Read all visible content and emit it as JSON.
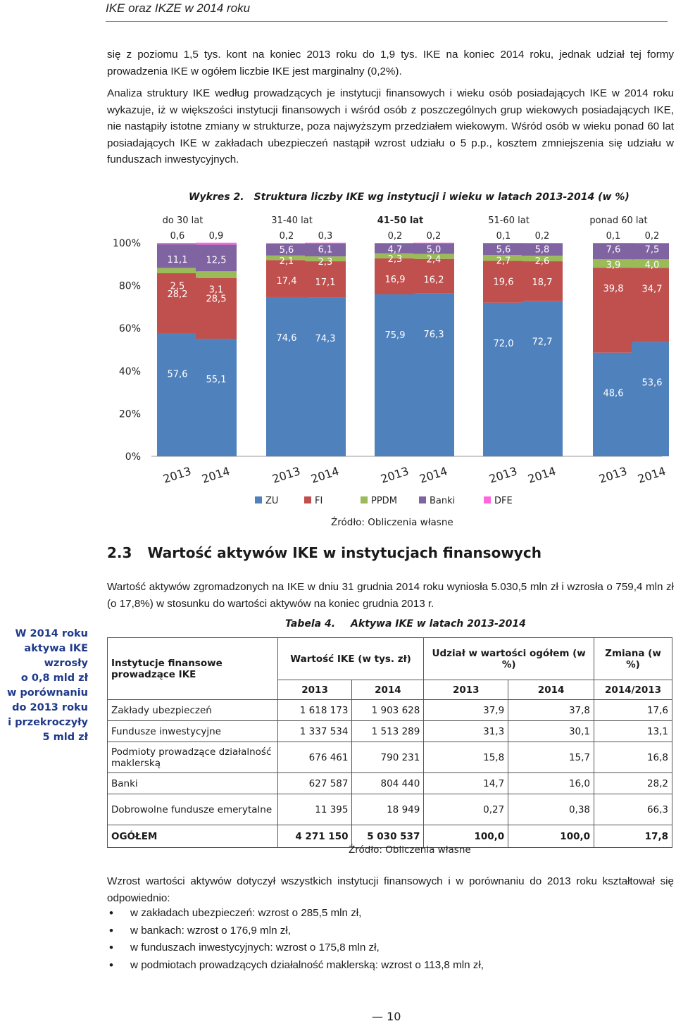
{
  "header": {
    "title": "IKE oraz IKZE w 2014 roku"
  },
  "para1": "się z poziomu 1,5 tys. kont na koniec 2013 roku do 1,9 tys. IKE na koniec 2014 roku, jednak udział tej formy prowadzenia IKE w ogółem liczbie IKE jest marginalny (0,2%).",
  "para2": "Analiza struktury IKE według prowadzących je instytucji finansowych i wieku osób posiadających IKE w 2014 roku wykazuje, iż w większości instytucji finansowych i wśród osób z poszczególnych grup wiekowych posiadających IKE, nie nastąpiły istotne zmiany w strukturze, poza najwyższym przedziałem wiekowym. Wśród osób w wieku ponad 60 lat posiadających IKE w zakładach ubezpieczeń nastąpił wzrost udziału o 5 p.p., kosztem zmniejszenia się udziału w funduszach inwestycyjnych.",
  "figure": {
    "label": "Wykres 2.",
    "title": "Struktura liczby IKE wg instytucji i wieku w latach 2013-2014 (w %)",
    "source": "Źródło: Obliczenia własne"
  },
  "chart_data": {
    "type": "bar",
    "stacked": true,
    "ylim": [
      0,
      100
    ],
    "yticks": [
      "0%",
      "20%",
      "40%",
      "60%",
      "80%",
      "100%"
    ],
    "groups": [
      "do 30 lat",
      "31-40 lat",
      "41-50 lat",
      "51-60 lat",
      "ponad 60 lat"
    ],
    "categories": [
      "2013",
      "2014",
      "2013",
      "2014",
      "2013",
      "2014",
      "2013",
      "2014",
      "2013",
      "2014"
    ],
    "series": [
      {
        "name": "ZU",
        "color": "#4f81bd",
        "values": [
          57.6,
          55.1,
          74.6,
          74.3,
          75.9,
          76.3,
          72.0,
          72.7,
          48.6,
          53.6
        ]
      },
      {
        "name": "FI",
        "color": "#c0504d",
        "values": [
          28.2,
          28.5,
          17.4,
          17.1,
          16.9,
          16.2,
          19.6,
          18.7,
          39.8,
          34.7
        ]
      },
      {
        "name": "PPDM",
        "color": "#9bbb59",
        "values": [
          2.5,
          3.1,
          2.1,
          2.3,
          2.3,
          2.4,
          2.7,
          2.6,
          3.9,
          4.0
        ]
      },
      {
        "name": "Banki",
        "color": "#8064a2",
        "values": [
          11.1,
          12.5,
          5.6,
          6.1,
          4.7,
          5.0,
          5.6,
          5.8,
          7.6,
          7.5
        ]
      },
      {
        "name": "DFE",
        "color": "#ff66dd",
        "values": [
          0.6,
          0.9,
          0.2,
          0.3,
          0.2,
          0.2,
          0.1,
          0.2,
          0.1,
          0.2
        ]
      }
    ],
    "value_labels": [
      [
        "57,6",
        "55,1",
        "74,6",
        "74,3",
        "75,9",
        "76,3",
        "72,0",
        "72,7",
        "48,6",
        "53,6"
      ],
      [
        "28,2",
        "28,5",
        "17,4",
        "17,1",
        "16,9",
        "16,2",
        "19,6",
        "18,7",
        "39,8",
        "34,7"
      ],
      [
        "2,5",
        "3,1",
        "2,1",
        "2,3",
        "2,3",
        "2,4",
        "2,7",
        "2,6",
        "3,9",
        "4,0"
      ],
      [
        "11,1",
        "12,5",
        "5,6",
        "6,1",
        "4,7",
        "5,0",
        "5,6",
        "5,8",
        "7,6",
        "7,5"
      ],
      [
        "0,6",
        "0,9",
        "0,2",
        "0,3",
        "0,2",
        "0,2",
        "0,1",
        "0,2",
        "0,1",
        "0,2"
      ]
    ],
    "legend": "bottom"
  },
  "section": {
    "number": "2.3",
    "title": "Wartość aktywów IKE w instytucjach finansowych"
  },
  "para3": "Wartość aktywów zgromadzonych na IKE w dniu 31 grudnia 2014 roku wyniosła 5.030,5 mln zł i wzrosła o 759,4 mln zł (o 17,8%) w stosunku do wartości aktywów na koniec grudnia 2013 r.",
  "sidebar": [
    "W 2014 roku",
    "aktywa IKE",
    "wzrosły",
    "o 0,8 mld zł",
    "w porównaniu",
    "do 2013 roku",
    "i przekroczyły",
    "5 mld zł"
  ],
  "table": {
    "label": "Tabela 4.",
    "title": "Aktywa IKE w latach 2013-2014",
    "head_institution": "Instytucje finansowe prowadzące IKE",
    "head_value": "Wartość IKE (w tys. zł)",
    "head_share": "Udział w wartości ogółem (w %)",
    "head_change": "Zmiana (w %)",
    "sub": [
      "2013",
      "2014",
      "2013",
      "2014",
      "2014/2013"
    ],
    "rows": [
      [
        "Zakłady ubezpieczeń",
        "1 618 173",
        "1 903 628",
        "37,9",
        "37,8",
        "17,6"
      ],
      [
        "Fundusze inwestycyjne",
        "1 337 534",
        "1 513 289",
        "31,3",
        "30,1",
        "13,1"
      ],
      [
        "Podmioty prowadzące działalność maklerską",
        "676 461",
        "790 231",
        "15,8",
        "15,7",
        "16,8"
      ],
      [
        "Banki",
        "627 587",
        "804 440",
        "14,7",
        "16,0",
        "28,2"
      ],
      [
        "Dobrowolne fundusze emerytalne",
        "11 395",
        "18 949",
        "0,27",
        "0,38",
        "66,3"
      ]
    ],
    "total": [
      "OGÓŁEM",
      "4 271 150",
      "5 030 537",
      "100,0",
      "100,0",
      "17,8"
    ],
    "source": "Źródło: Obliczenia własne"
  },
  "para4": "Wzrost wartości aktywów dotyczył wszystkich instytucji finansowych i w porównaniu do 2013 roku kształtował się odpowiednio:",
  "bullets": [
    "w zakładach ubezpieczeń: wzrost o 285,5 mln zł,",
    "w bankach: wzrost o 176,9 mln zł,",
    "w funduszach inwestycyjnych: wzrost o 175,8 mln zł,",
    "w podmiotach prowadzących działalność maklerską: wzrost o 113,8 mln zł,"
  ],
  "page_number": "10"
}
